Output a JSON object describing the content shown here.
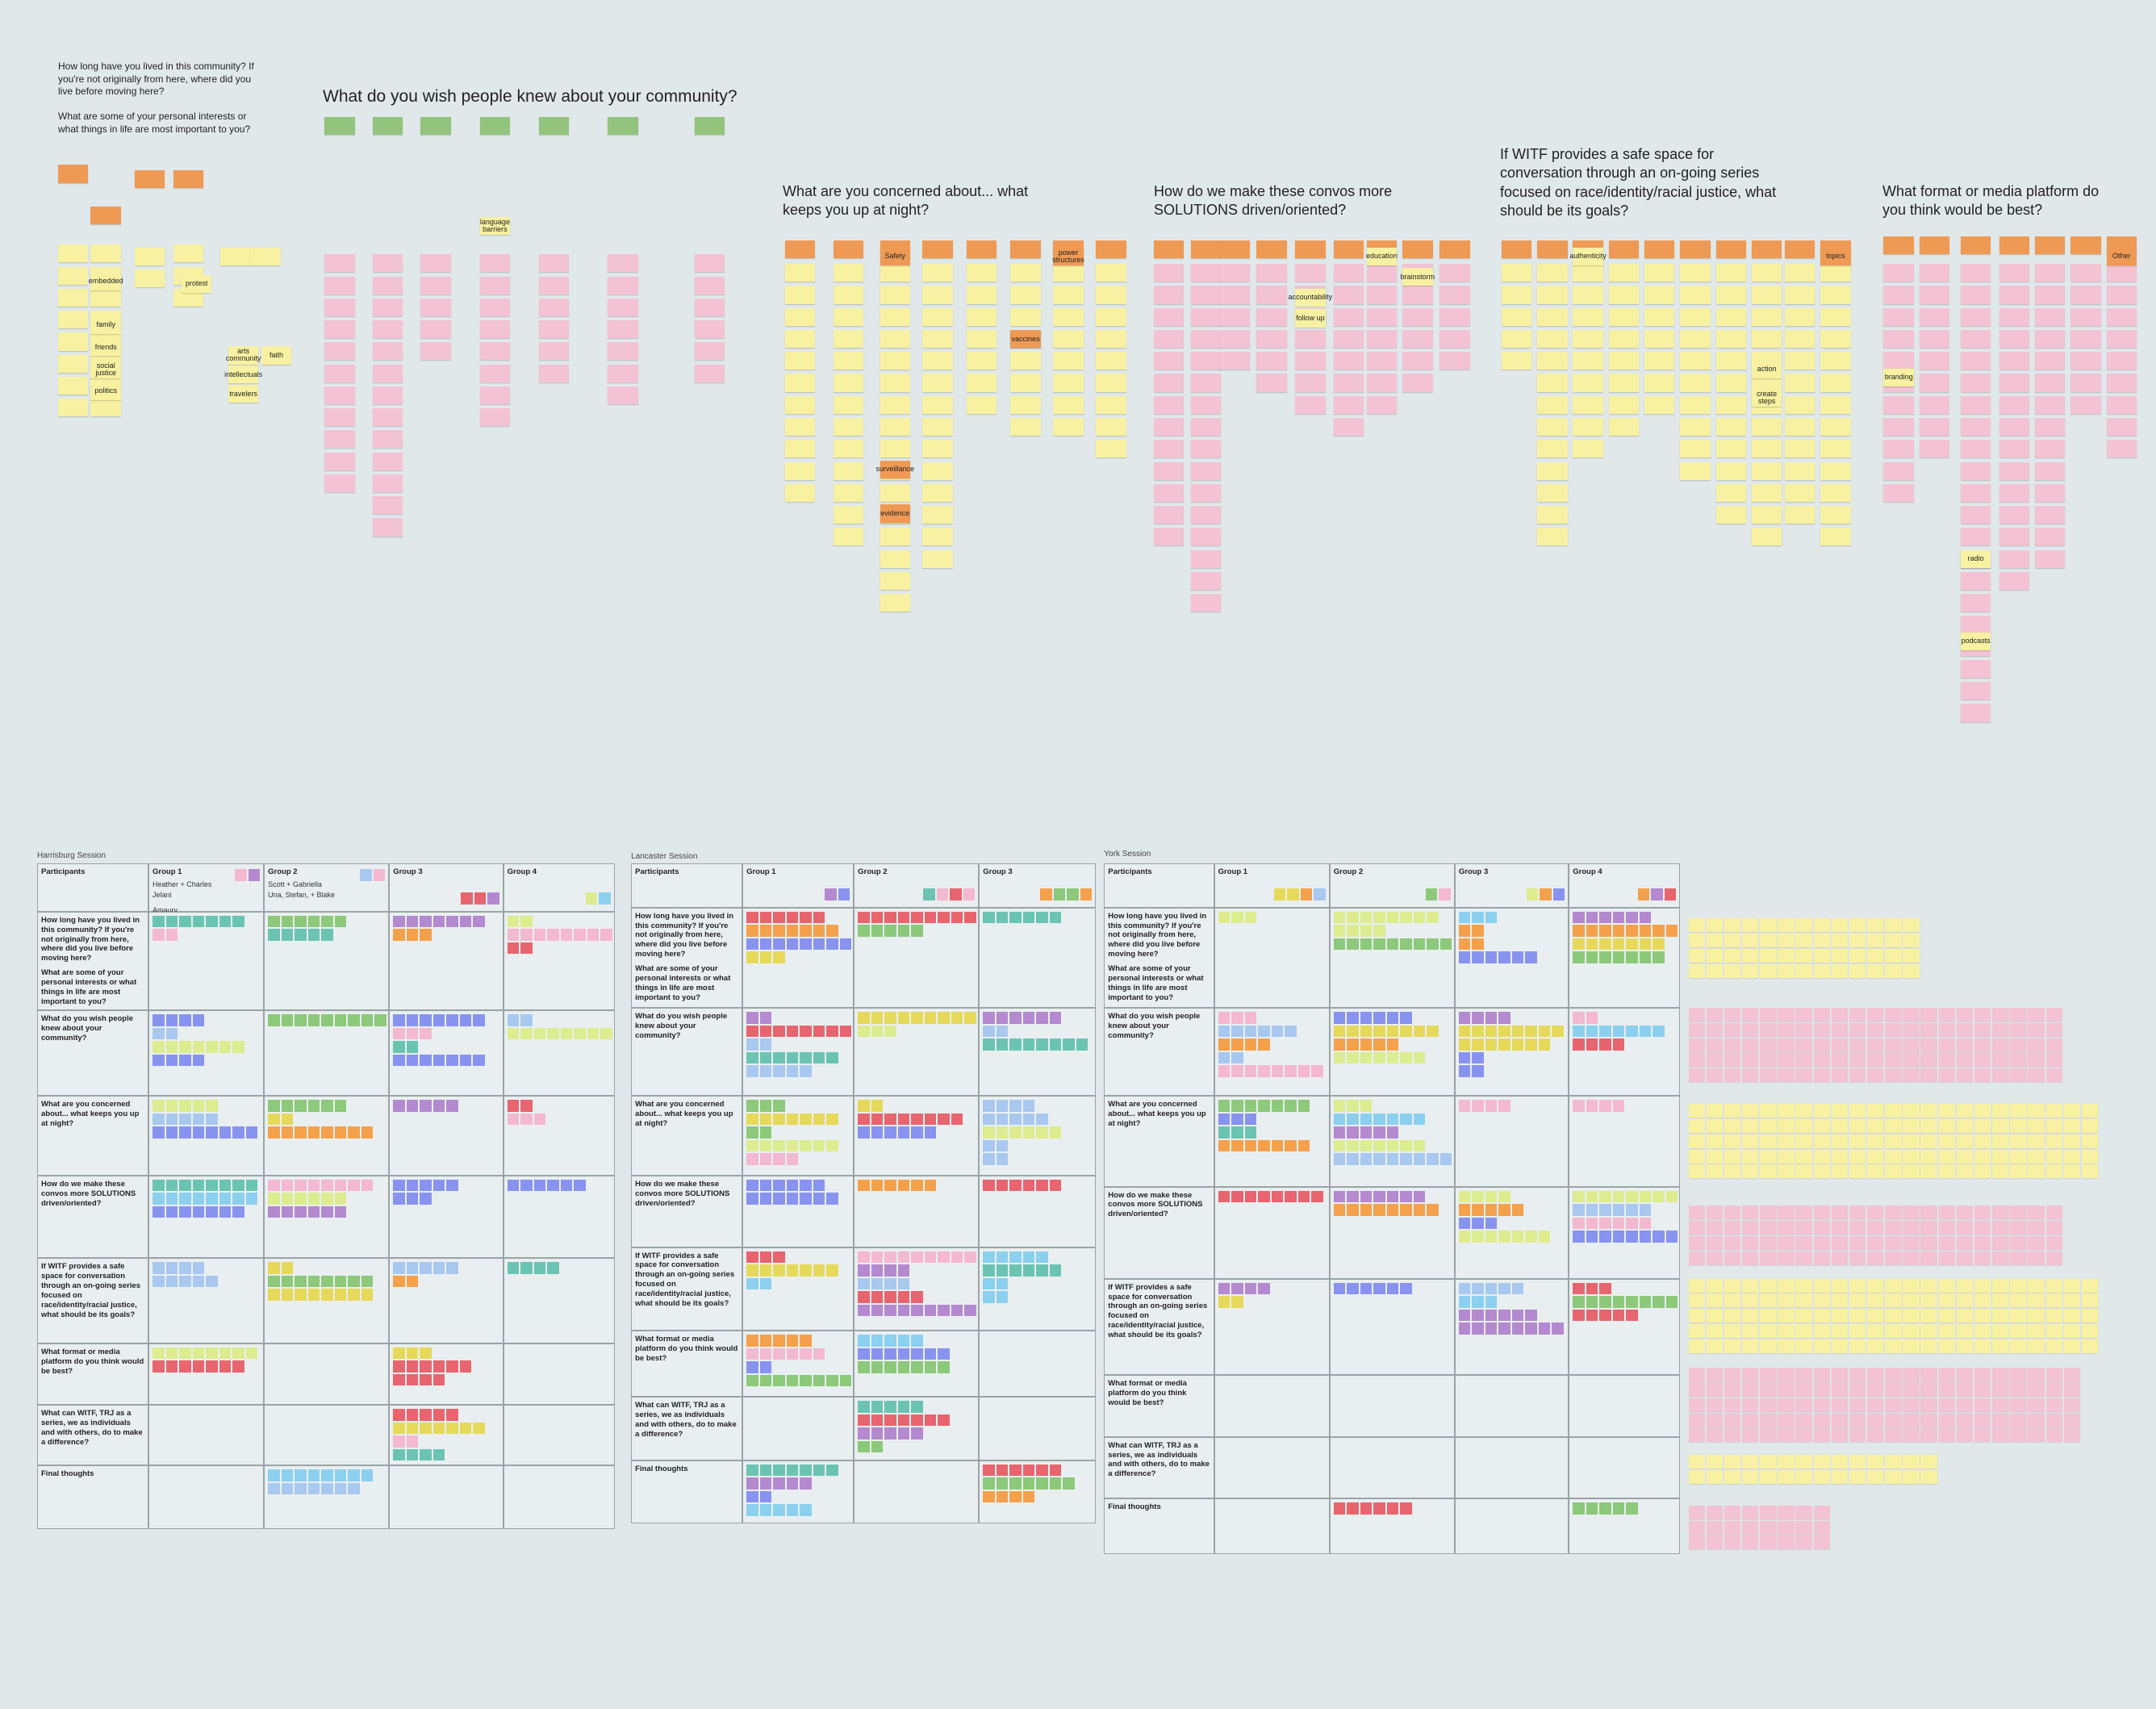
{
  "intro_questions": [
    "How long have you lived in this community? If you're not originally from here, where did you live before moving here?",
    "What are some of your personal interests or what things in life are most important to you?"
  ],
  "sections": [
    {
      "title": "What do you wish people knew about your community?"
    },
    {
      "title": "What are you concerned about... what keeps you up at night?"
    },
    {
      "title": "How do we make these convos more SOLUTIONS driven/oriented?"
    },
    {
      "title": "If WITF provides a safe space for conversation through an on-going series focused on race/identity/racial justice, what should be its goals?"
    },
    {
      "title": "What format or media platform do you think would be best?"
    }
  ],
  "sticky_labels": [
    "embedded",
    "family",
    "friends",
    "politics",
    "social justice",
    "faith",
    "travelers",
    "arts community",
    "intellectuals",
    "protest",
    "language barriers",
    "Safety",
    "vaccines",
    "power structures",
    "evidence",
    "surveillance",
    "education",
    "follow up",
    "accountability",
    "brainstorm",
    "action",
    "topics",
    "create steps",
    "authenticity",
    "branding",
    "radio",
    "podcasts",
    "Other"
  ],
  "sessions": [
    {
      "name": "Harrisburg Session",
      "groups": [
        {
          "name": "Group 1",
          "members": [
            "Heather + Charles",
            "Jelani",
            "Amaury"
          ]
        },
        {
          "name": "Group 2",
          "members": [
            "Scott + Gabriella",
            "Una, Stefan, + Blake"
          ]
        },
        {
          "name": "Group 3",
          "members": []
        },
        {
          "name": "Group 4",
          "members": []
        }
      ],
      "rows": [
        [
          "Participants"
        ],
        [
          "How long have you lived in this community? If you're not originally from here, where did you live before moving here?",
          "What are some of your personal interests or what things in life are most important to you?"
        ],
        [
          "What do you wish people knew about your community?"
        ],
        [
          "What are you concerned about... what keeps you up at night?"
        ],
        [
          "How do we make these convos more SOLUTIONS driven/oriented?"
        ],
        [
          "If WITF provides a safe space for conversation through an on-going series focused on race/identity/racial justice, what should be its goals?"
        ],
        [
          "What format or media platform do you think would be best?"
        ],
        [
          "What can WITF, TRJ as a series, we as individuals and with others, do to make a difference?"
        ],
        [
          "Final thoughts"
        ]
      ]
    },
    {
      "name": "Lancaster Session",
      "groups": [
        {
          "name": "Group 1",
          "members": []
        },
        {
          "name": "Group 2",
          "members": []
        },
        {
          "name": "Group 3",
          "members": []
        }
      ],
      "rows": [
        [
          "Participants"
        ],
        [
          "How long have you lived in this community? If you're not originally from here, where did you live before moving here?",
          "What are some of your personal interests or what things in life are most important to you?"
        ],
        [
          "What do you wish people knew about your community?"
        ],
        [
          "What are you concerned about... what keeps you up at night?"
        ],
        [
          "How do we make these convos more SOLUTIONS driven/oriented?"
        ],
        [
          "If WITF provides a safe space for conversation through an on-going series focused on race/identity/racial justice, what should be its goals?"
        ],
        [
          "What format or media platform do you think would be best?"
        ],
        [
          "What can WITF, TRJ as a series, we as individuals and with others, do to make a difference?"
        ],
        [
          "Final thoughts"
        ]
      ]
    },
    {
      "name": "York Session",
      "groups": [
        {
          "name": "Group 1",
          "members": []
        },
        {
          "name": "Group 2",
          "members": []
        },
        {
          "name": "Group 3",
          "members": []
        },
        {
          "name": "Group 4",
          "members": []
        }
      ],
      "rows": [
        [
          "Participants"
        ],
        [
          "How long have you lived in this community? If you're not originally from here, where did you live before moving here?",
          "What are some of your personal interests or what things in life are most important to you?"
        ],
        [
          "What do you wish people knew about your community?"
        ],
        [
          "What are you concerned about... what keeps you up at night?"
        ],
        [
          "How do we make these convos more SOLUTIONS driven/oriented?"
        ],
        [
          "If WITF provides a safe space for conversation through an on-going series focused on race/identity/racial justice, what should be its goals?"
        ],
        [
          "What format or media platform do you think would be best?"
        ],
        [
          "What can WITF, TRJ as a series, we as individuals and with others, do to make a difference?"
        ],
        [
          "Final thoughts"
        ]
      ]
    }
  ]
}
